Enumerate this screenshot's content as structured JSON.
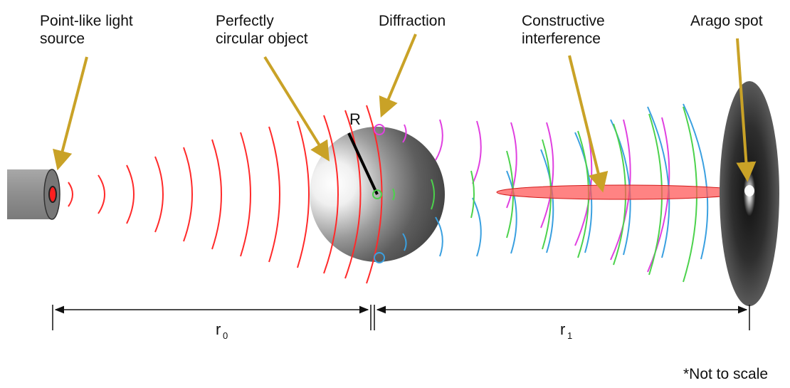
{
  "labels": {
    "light_source": "Point-like light\nsource",
    "object": "Perfectly\ncircular object",
    "diffraction": "Diffraction",
    "constructive": "Constructive\ninterference",
    "arago": "Arago spot",
    "note": "*Not to scale"
  },
  "math": {
    "radius": "R",
    "r0": "r",
    "r0_sub": "0",
    "r1": "r",
    "r1_sub": "1"
  },
  "colors": {
    "arrow": "#c9a227",
    "red_wave": "#ff2a2a",
    "magenta_wave": "#e040e0",
    "green_wave": "#4cd24c",
    "blue_wave": "#3aa0e0",
    "beam": "#ff5a5a",
    "screen": "#1a1a1a"
  }
}
